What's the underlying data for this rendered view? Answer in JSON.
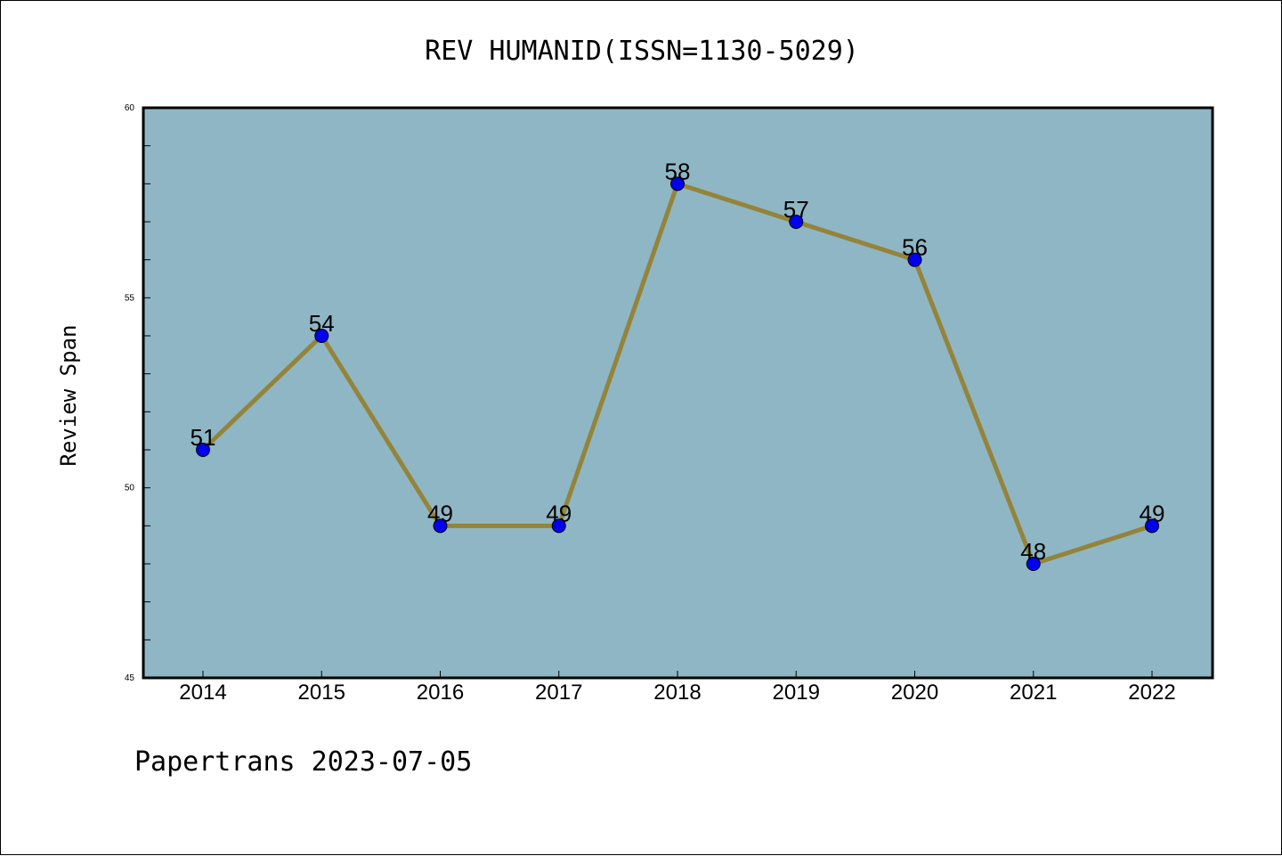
{
  "chart_data": {
    "type": "line",
    "title": "REV HUMANID(ISSN=1130-5029)",
    "xlabel": "",
    "ylabel": "Review Span",
    "x": [
      "2014",
      "2015",
      "2016",
      "2017",
      "2018",
      "2019",
      "2020",
      "2021",
      "2022"
    ],
    "values": [
      51,
      54,
      49,
      49,
      58,
      57,
      56,
      48,
      49
    ],
    "ylim": [
      45,
      60
    ],
    "yticks": [
      "45",
      "50",
      "55",
      "60"
    ],
    "grid": false,
    "legend": "none",
    "colors": {
      "plot_background": "#8fb6c4",
      "line": "#94843a",
      "marker": "#0000ee"
    }
  },
  "footer": "Papertrans 2023-07-05"
}
